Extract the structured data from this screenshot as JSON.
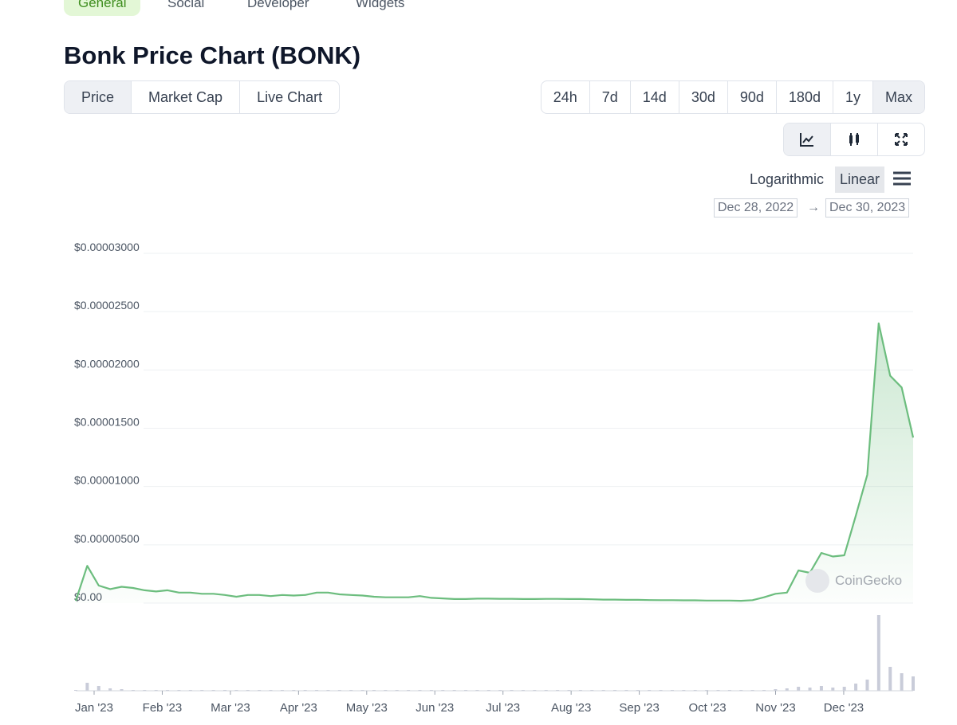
{
  "tabs": [
    "General",
    "Social",
    "Developer",
    "Widgets"
  ],
  "header": {
    "title": "Bonk Price Chart (BONK)"
  },
  "chart_tabs": [
    "Price",
    "Market Cap",
    "Live Chart"
  ],
  "ranges": [
    "24h",
    "7d",
    "14d",
    "30d",
    "90d",
    "180d",
    "1y",
    "Max"
  ],
  "scale_options": [
    "Logarithmic",
    "Linear"
  ],
  "date_range": {
    "from": "Dec 28, 2022",
    "separator": "→",
    "to": "Dec 30, 2023"
  },
  "watermark": "CoinGecko",
  "chart_data": {
    "type": "line",
    "color": "#6cbd7e",
    "grid": true,
    "xtick_labels": [
      "Jan '23",
      "Feb '23",
      "Mar '23",
      "Apr '23",
      "May '23",
      "Jun '23",
      "Jul '23",
      "Aug '23",
      "Sep '23",
      "Oct '23",
      "Nov '23",
      "Dec '23"
    ],
    "ylim": [
      0,
      3e-05
    ],
    "yticks": [
      {
        "value": 0,
        "label": "$0.00"
      },
      {
        "value": 5e-06,
        "label": "$0.00000500"
      },
      {
        "value": 1e-05,
        "label": "$0.00001000"
      },
      {
        "value": 1.5e-05,
        "label": "$0.00001500"
      },
      {
        "value": 2e-05,
        "label": "$0.00002000"
      },
      {
        "value": 2.5e-05,
        "label": "$0.00002500"
      },
      {
        "value": 3e-05,
        "label": "$0.00003000"
      }
    ],
    "values": [
      2e-07,
      3.2e-06,
      1.5e-06,
      1.2e-06,
      1.4e-06,
      1.3e-06,
      1.1e-06,
      1e-06,
      1.1e-06,
      9e-07,
      9e-07,
      8e-07,
      8e-07,
      7e-07,
      5.5e-07,
      7e-07,
      7e-07,
      6e-07,
      7e-07,
      6.5e-07,
      7e-07,
      9e-07,
      9e-07,
      7.5e-07,
      7e-07,
      6.5e-07,
      5.5e-07,
      5e-07,
      5e-07,
      5e-07,
      6e-07,
      4.5e-07,
      4e-07,
      3.5e-07,
      3.5e-07,
      3.8e-07,
      3.8e-07,
      3.7e-07,
      3.7e-07,
      3.5e-07,
      3.5e-07,
      3.6e-07,
      3.6e-07,
      3.5e-07,
      3.5e-07,
      3.3e-07,
      3e-07,
      3e-07,
      2.8e-07,
      2.8e-07,
      2.6e-07,
      2.5e-07,
      2.5e-07,
      2.4e-07,
      2.4e-07,
      2.2e-07,
      2.2e-07,
      2.2e-07,
      2e-07,
      2.5e-07,
      5e-07,
      8e-07,
      9e-07,
      2.8e-06,
      2.6e-06,
      4.3e-06,
      4e-06,
      4.1e-06,
      7.5e-06,
      1.1e-05,
      2.4e-05,
      1.95e-05,
      1.85e-05,
      1.42e-05
    ],
    "volume": [
      1,
      10,
      6,
      3,
      2,
      1,
      1,
      1,
      1,
      1,
      1,
      1,
      1,
      1,
      1,
      1,
      1,
      1,
      1,
      1,
      1,
      1,
      1,
      1,
      1,
      1,
      1,
      1,
      1,
      1,
      1,
      1,
      1,
      1,
      1,
      1,
      1,
      1,
      1,
      1,
      1,
      1,
      1,
      1,
      1,
      1,
      1,
      1,
      1,
      1,
      1,
      1,
      1,
      1,
      1,
      1,
      1,
      1,
      1,
      1,
      1,
      2,
      3,
      5,
      4,
      6,
      4,
      5,
      9,
      14,
      95,
      30,
      22,
      18
    ]
  }
}
